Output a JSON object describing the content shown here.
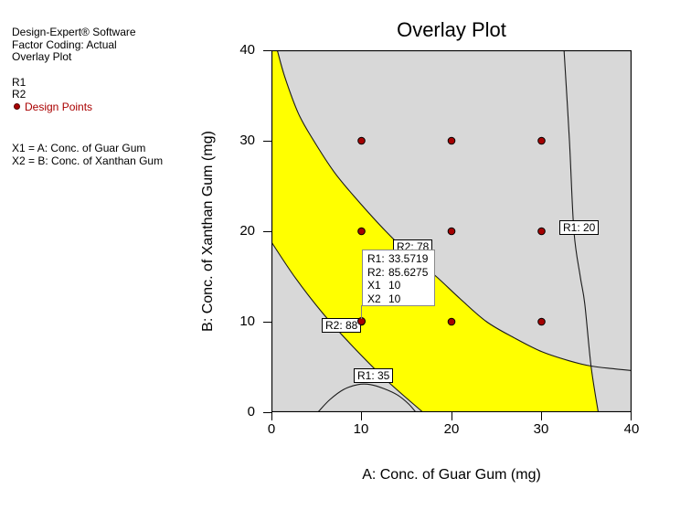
{
  "sidebar": {
    "lines": [
      {
        "text": "Design-Expert® Software"
      },
      {
        "text": "Factor Coding: Actual"
      },
      {
        "text": "Overlay Plot"
      },
      {
        "text": "R1"
      },
      {
        "text": "R2"
      },
      {
        "text": "Design Points"
      },
      {
        "text": "X1 = A: Conc. of Guar Gum"
      },
      {
        "text": "X2 = B: Conc. of Xanthan Gum"
      }
    ],
    "design_points_color": "#aa0000"
  },
  "chart_data": {
    "type": "scatter",
    "title": "Overlay Plot",
    "xlabel": "A: Conc. of Guar Gum (mg)",
    "ylabel": "B: Conc. of Xanthan Gum (mg)",
    "xlim": [
      0,
      40
    ],
    "ylim": [
      0,
      40
    ],
    "x_ticks": [
      "0",
      "10",
      "20",
      "30",
      "40"
    ],
    "y_ticks": [
      "40",
      "30",
      "20",
      "10",
      "0"
    ],
    "grid": false,
    "plot_bg_color": "#d8d8d8",
    "feasible_color": "#ffff00",
    "design_point_color": "#a50000",
    "design_points": [
      [
        10,
        10
      ],
      [
        20,
        10
      ],
      [
        30,
        10
      ],
      [
        10,
        20
      ],
      [
        20,
        20
      ],
      [
        30,
        20
      ],
      [
        10,
        30
      ],
      [
        20,
        30
      ],
      [
        30,
        30
      ]
    ],
    "contours": [
      {
        "label": "R1: 20",
        "points": [
          [
            32.5,
            40
          ],
          [
            33.1,
            30
          ],
          [
            33.6,
            20
          ],
          [
            34.3,
            15
          ],
          [
            34.8,
            12
          ],
          [
            35.5,
            5.1
          ],
          [
            36.3,
            0
          ]
        ]
      },
      {
        "label": "R1: 35",
        "points": [
          [
            5.2,
            0.05
          ],
          [
            6.5,
            1.4
          ],
          [
            8.0,
            2.5
          ],
          [
            9.6,
            3.05
          ],
          [
            11.0,
            3.05
          ],
          [
            12.5,
            2.6
          ],
          [
            14.0,
            1.9
          ],
          [
            15.2,
            0.95
          ],
          [
            16.0,
            0.05
          ]
        ]
      },
      {
        "label": "R2: 78",
        "points": [
          [
            0.65,
            40
          ],
          [
            1.5,
            37
          ],
          [
            3.0,
            33
          ],
          [
            4.7,
            30
          ],
          [
            7.0,
            26.5
          ],
          [
            9.5,
            23.5
          ],
          [
            12.7,
            20
          ],
          [
            15.5,
            17.3
          ],
          [
            18.3,
            15
          ],
          [
            21.0,
            12.5
          ],
          [
            23.9,
            10
          ],
          [
            27.0,
            8.2
          ],
          [
            30.0,
            6.7
          ],
          [
            33.0,
            5.7
          ],
          [
            35.5,
            5.1
          ],
          [
            38.0,
            4.8
          ],
          [
            40.0,
            4.6
          ]
        ]
      },
      {
        "label": "R2: 88",
        "points": [
          [
            0,
            18.8
          ],
          [
            2.65,
            14.85
          ],
          [
            5.65,
            11.0
          ],
          [
            9.0,
            7.3
          ],
          [
            12.7,
            3.6
          ],
          [
            16.7,
            0.1
          ]
        ]
      }
    ],
    "flag": {
      "anchor_point": [
        10,
        10
      ],
      "rows": [
        [
          "R1:",
          "33.5719"
        ],
        [
          "R2:",
          "85.6275"
        ],
        [
          "X1",
          "10"
        ],
        [
          "X2",
          "10"
        ]
      ]
    }
  }
}
